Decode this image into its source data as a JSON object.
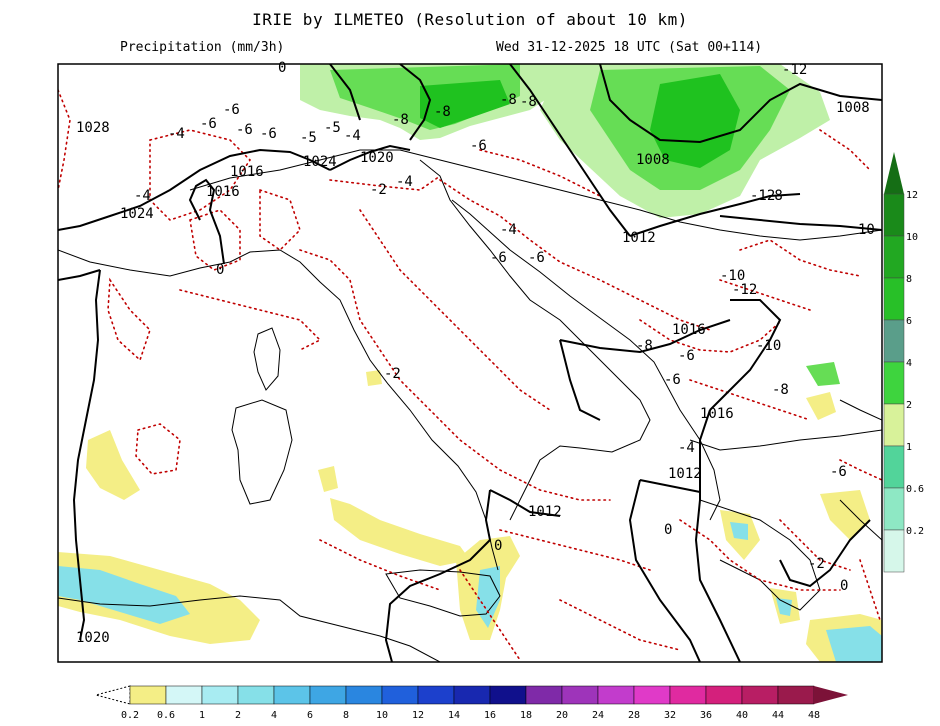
{
  "header": {
    "title": "IRIE by ILMETEO (Resolution of about 10 km)",
    "variable": "Precipitation (mm/3h)",
    "run_info": "Wed 31-12-2025 18 UTC (Sat 00+114)"
  },
  "colors": {
    "coast": "#000000",
    "isobar": "#000000",
    "temperature_dotted": "#c00000",
    "precip_yellow": "#f4ee86",
    "precip_light_green": "#bff0a8",
    "precip_green": "#66dd55",
    "precip_dark_green": "#1fc21f",
    "precip_cyan": "#86e0e8",
    "precip_blue": "#5cc4e8"
  },
  "isobar_labels": [
    "1028",
    "1024",
    "1024",
    "1020",
    "1016",
    "1016",
    "1012",
    "1016",
    "1016",
    "1012",
    "1008",
    "1008",
    "1020",
    "1012",
    "10"
  ],
  "temperature_labels": [
    "-6",
    "-4",
    "-6",
    "-6",
    "-6",
    "-4",
    "-5",
    "-5",
    "-8",
    "-8",
    "-8",
    "-8",
    "-6",
    "-4",
    "-2",
    "-4",
    "-4",
    "-6",
    "-6",
    "0",
    "-2",
    "-10",
    "-12",
    "-8",
    "-6",
    "-8",
    "-6",
    "-4",
    "-6",
    "-2",
    "0",
    "0",
    "-12",
    "-12",
    "0",
    "-10",
    "0",
    "-8"
  ],
  "precip_scale": {
    "labels": [
      "0.2",
      "0.6",
      "1",
      "2",
      "4",
      "6",
      "8",
      "10",
      "12",
      "14",
      "16",
      "18",
      "20",
      "24",
      "28",
      "32",
      "36",
      "40",
      "44",
      "48"
    ],
    "colors": [
      "#f4ee86",
      "#d4f7f7",
      "#a8ecf2",
      "#86e0e8",
      "#5cc4e8",
      "#3ea6e4",
      "#2a86e0",
      "#2060dc",
      "#1c40cc",
      "#1828b0",
      "#10108c",
      "#7f2aa8",
      "#9e34ba",
      "#c23ccc",
      "#e03ac8",
      "#e02aa0",
      "#d4207c",
      "#b81e64",
      "#9a1a4c",
      "#7c1238"
    ]
  },
  "side_scale": {
    "labels": [
      "12",
      "10",
      "8",
      "6",
      "4",
      "2",
      "1",
      "0.6",
      "0.2"
    ],
    "colors": [
      "#1a8a1a",
      "#22a822",
      "#28c028",
      "#5a9e8a",
      "#3ed43e",
      "#d8f29a",
      "#52d49a",
      "#8ee8c4",
      "#d6f7ea"
    ]
  }
}
